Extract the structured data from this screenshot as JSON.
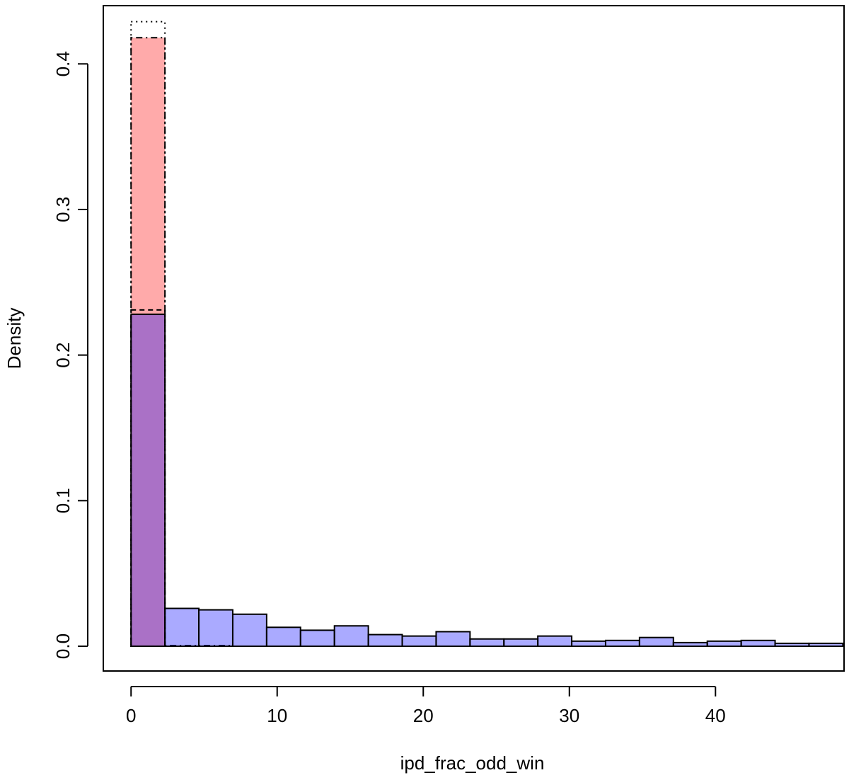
{
  "chart_data": {
    "type": "bar",
    "title": "",
    "xlabel": "ipd_frac_odd_win",
    "ylabel": "Density",
    "xlim": [
      -1.9,
      48.8
    ],
    "ylim": [
      -0.017,
      0.44
    ],
    "xticks": [
      0,
      10,
      20,
      30,
      40
    ],
    "yticks": [
      0.0,
      0.1,
      0.2,
      0.3,
      0.4
    ],
    "xtick_labels": [
      "0",
      "10",
      "20",
      "30",
      "40"
    ],
    "ytick_labels": [
      "0.0",
      "0.1",
      "0.2",
      "0.3",
      "0.4"
    ],
    "bin_edges": [
      0,
      2.32,
      4.64,
      6.96,
      9.28,
      11.6,
      13.92,
      16.24,
      18.56,
      20.88,
      23.2,
      25.52,
      27.84,
      30.16,
      32.48,
      34.8,
      37.12,
      39.44,
      41.76,
      44.08,
      46.4,
      48.72
    ],
    "series": [
      {
        "fill": "#ff000055",
        "border_style": "dotdash",
        "values": [
          0.418,
          0.0005,
          0.0005,
          0,
          0,
          0,
          0,
          0,
          0,
          0,
          0,
          0,
          0,
          0,
          0,
          0,
          0,
          0,
          0,
          0,
          0
        ]
      },
      {
        "fill": "#0000ff55",
        "border_style": "solid",
        "values": [
          0.228,
          0.026,
          0.025,
          0.022,
          0.013,
          0.011,
          0.014,
          0.008,
          0.007,
          0.01,
          0.005,
          0.005,
          0.007,
          0.0035,
          0.004,
          0.006,
          0.0025,
          0.0035,
          0.004,
          0.002,
          0.002
        ]
      }
    ],
    "outline_bars": [
      {
        "style": "dotted",
        "x0": 0,
        "x1": 2.32,
        "value": 0.429
      },
      {
        "style": "dashed",
        "x0": 0,
        "x1": 2.32,
        "value": 0.231
      }
    ],
    "grid": false,
    "legend": "none"
  }
}
